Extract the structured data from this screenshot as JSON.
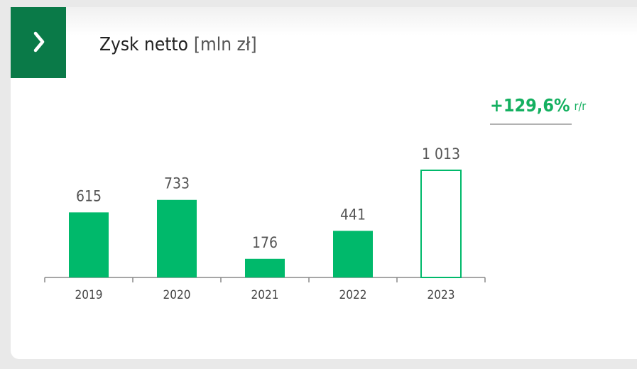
{
  "chart_data": {
    "type": "bar",
    "title": "Zysk netto",
    "unit": "[mln zł]",
    "annotation": {
      "value": "+129,6%",
      "suffix": "r/r"
    },
    "categories": [
      "2019",
      "2020",
      "2021",
      "2022",
      "2023"
    ],
    "values": [
      615,
      733,
      176,
      441,
      1013
    ],
    "value_labels": [
      "615",
      "733",
      "176",
      "441",
      "1 013"
    ],
    "color": "#00b96b",
    "bar_style": [
      "filled",
      "filled",
      "filled",
      "filled",
      "outline"
    ]
  }
}
